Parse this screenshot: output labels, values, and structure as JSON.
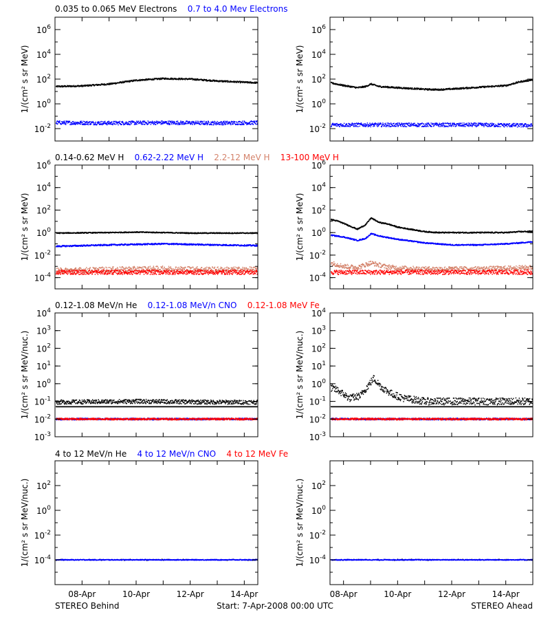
{
  "row_legends": [
    [
      {
        "text": "0.035 to 0.065 MeV Electrons",
        "color": "#000000"
      },
      {
        "text": "0.7 to 4.0 Mev Electrons",
        "color": "#0000ff"
      }
    ],
    [
      {
        "text": "0.14-0.62 MeV H",
        "color": "#000000"
      },
      {
        "text": "0.62-2.22 MeV H",
        "color": "#0000ff"
      },
      {
        "text": "2.2-12 MeV H",
        "color": "#d4826a"
      },
      {
        "text": "13-100 MeV H",
        "color": "#ff0000"
      }
    ],
    [
      {
        "text": "0.12-1.08 MeV/n He",
        "color": "#000000"
      },
      {
        "text": "0.12-1.08 MeV/n CNO",
        "color": "#0000ff"
      },
      {
        "text": "0.12-1.08 MeV Fe",
        "color": "#ff0000"
      }
    ],
    [
      {
        "text": "4 to 12 MeV/n He",
        "color": "#000000"
      },
      {
        "text": "4 to 12 MeV/n CNO",
        "color": "#0000ff"
      },
      {
        "text": "4 to 12 MeV Fe",
        "color": "#ff0000"
      }
    ]
  ],
  "footer": {
    "left": "STEREO Behind",
    "center": "Start:  7-Apr-2008 00:00 UTC",
    "right": "STEREO Ahead"
  },
  "chart_data": [
    {
      "id": "behind-electrons",
      "type": "scatter",
      "ylabel": "1/(cm² s sr MeV)",
      "yscale": "log",
      "ylim": [
        0.001,
        10000000
      ],
      "yticks": [
        {
          "base": "10",
          "exp": "-2",
          "value": 0.01
        },
        {
          "base": "10",
          "exp": "0",
          "value": 1
        },
        {
          "base": "10",
          "exp": "2",
          "value": 100
        },
        {
          "base": "10",
          "exp": "4",
          "value": 10000
        },
        {
          "base": "10",
          "exp": "6",
          "value": 1000000
        }
      ],
      "xlim_days": [
        0,
        7.5
      ],
      "series": [
        {
          "color": "#000000",
          "x": [
            0,
            1,
            2,
            3,
            4,
            5,
            6,
            7,
            7.5
          ],
          "y": [
            25,
            28,
            40,
            80,
            110,
            100,
            70,
            55,
            50
          ],
          "scatter": 0.06
        },
        {
          "color": "#0000ff",
          "x": [
            0,
            2,
            4,
            6,
            7.5
          ],
          "y": [
            0.03,
            0.028,
            0.03,
            0.028,
            0.03
          ],
          "scatter": 0.15
        }
      ]
    },
    {
      "id": "ahead-electrons",
      "type": "scatter",
      "ylabel": "1/(cm² s sr MeV)",
      "yscale": "log",
      "ylim": [
        0.001,
        10000000
      ],
      "yticks": [
        {
          "base": "10",
          "exp": "-2",
          "value": 0.01
        },
        {
          "base": "10",
          "exp": "0",
          "value": 1
        },
        {
          "base": "10",
          "exp": "2",
          "value": 100
        },
        {
          "base": "10",
          "exp": "4",
          "value": 10000
        },
        {
          "base": "10",
          "exp": "6",
          "value": 1000000
        }
      ],
      "xlim_days": [
        0.5,
        8
      ],
      "series": [
        {
          "color": "#000000",
          "x": [
            0.5,
            1,
            1.5,
            1.8,
            2,
            2.3,
            3,
            4,
            4.5,
            5,
            6,
            7,
            7.5,
            8
          ],
          "y": [
            50,
            30,
            20,
            25,
            40,
            25,
            20,
            15,
            14,
            16,
            22,
            30,
            60,
            90
          ],
          "scatter": 0.06
        },
        {
          "color": "#0000ff",
          "x": [
            0.5,
            3,
            6,
            8
          ],
          "y": [
            0.02,
            0.02,
            0.02,
            0.018
          ],
          "scatter": 0.15
        }
      ]
    },
    {
      "id": "behind-protons",
      "type": "scatter",
      "ylabel": "1/(cm² s sr MeV)",
      "yscale": "log",
      "ylim": [
        1e-05,
        1000000
      ],
      "yticks": [
        {
          "base": "10",
          "exp": "-4",
          "value": 0.0001
        },
        {
          "base": "10",
          "exp": "-2",
          "value": 0.01
        },
        {
          "base": "10",
          "exp": "0",
          "value": 1
        },
        {
          "base": "10",
          "exp": "2",
          "value": 100
        },
        {
          "base": "10",
          "exp": "4",
          "value": 10000
        },
        {
          "base": "10",
          "exp": "6",
          "value": 1000000
        }
      ],
      "xlim_days": [
        0,
        7.5
      ],
      "series": [
        {
          "color": "#000000",
          "x": [
            0,
            2,
            3,
            4,
            5,
            6,
            7.5
          ],
          "y": [
            0.9,
            1.0,
            1.1,
            1.0,
            0.9,
            0.9,
            0.9
          ],
          "scatter": 0.04
        },
        {
          "color": "#0000ff",
          "x": [
            0,
            2,
            4,
            6,
            7.5
          ],
          "y": [
            0.06,
            0.08,
            0.1,
            0.08,
            0.07
          ],
          "scatter": 0.06
        },
        {
          "color": "#d4826a",
          "x": [
            0,
            2,
            4,
            6,
            7.5
          ],
          "y": [
            0.0004,
            0.0005,
            0.0006,
            0.0005,
            0.0005
          ],
          "scatter": 0.25
        },
        {
          "color": "#ff0000",
          "x": [
            0,
            3,
            7.5
          ],
          "y": [
            0.0003,
            0.0003,
            0.0003
          ],
          "scatter": 0.2
        }
      ]
    },
    {
      "id": "ahead-protons",
      "type": "scatter",
      "ylabel": "1/(cm² s sr MeV)",
      "yscale": "log",
      "ylim": [
        1e-05,
        1000000
      ],
      "yticks": [
        {
          "base": "10",
          "exp": "-4",
          "value": 0.0001
        },
        {
          "base": "10",
          "exp": "-2",
          "value": 0.01
        },
        {
          "base": "10",
          "exp": "0",
          "value": 1
        },
        {
          "base": "10",
          "exp": "2",
          "value": 100
        },
        {
          "base": "10",
          "exp": "4",
          "value": 10000
        },
        {
          "base": "10",
          "exp": "6",
          "value": 1000000
        }
      ],
      "xlim_days": [
        0.5,
        8
      ],
      "series": [
        {
          "color": "#000000",
          "x": [
            0.5,
            0.8,
            1.2,
            1.5,
            1.8,
            2,
            2.3,
            2.6,
            3,
            4,
            4.5,
            5,
            6,
            7,
            7.5,
            8
          ],
          "y": [
            15,
            10,
            4,
            2,
            5,
            20,
            8,
            6,
            3,
            1.2,
            1.0,
            1.0,
            1.0,
            1.0,
            1.2,
            1.3
          ],
          "scatter": 0.05
        },
        {
          "color": "#0000ff",
          "x": [
            0.5,
            1,
            1.5,
            1.8,
            2,
            2.3,
            3,
            4,
            5,
            6,
            7,
            8
          ],
          "y": [
            0.6,
            0.4,
            0.2,
            0.3,
            0.8,
            0.5,
            0.25,
            0.12,
            0.08,
            0.08,
            0.1,
            0.15
          ],
          "scatter": 0.05
        },
        {
          "color": "#d4826a",
          "x": [
            0.5,
            1,
            1.5,
            2,
            2.5,
            3,
            4,
            6,
            8
          ],
          "y": [
            0.002,
            0.001,
            0.0008,
            0.002,
            0.001,
            0.0007,
            0.0006,
            0.0006,
            0.0008
          ],
          "scatter": 0.2
        },
        {
          "color": "#ff0000",
          "x": [
            0.5,
            3,
            6,
            8
          ],
          "y": [
            0.0003,
            0.0003,
            0.0003,
            0.0003
          ],
          "scatter": 0.2
        }
      ]
    },
    {
      "id": "behind-heavy",
      "type": "scatter",
      "ylabel": "1/(cm² s sr MeV/nuc.)",
      "yscale": "log",
      "ylim": [
        0.001,
        10000
      ],
      "yticks": [
        {
          "base": "10",
          "exp": "-3",
          "value": 0.001
        },
        {
          "base": "10",
          "exp": "-2",
          "value": 0.01
        },
        {
          "base": "10",
          "exp": "-1",
          "value": 0.1
        },
        {
          "base": "10",
          "exp": "0",
          "value": 1
        },
        {
          "base": "10",
          "exp": "1",
          "value": 10
        },
        {
          "base": "10",
          "exp": "2",
          "value": 100
        },
        {
          "base": "10",
          "exp": "3",
          "value": 1000
        },
        {
          "base": "10",
          "exp": "4",
          "value": 10000
        }
      ],
      "xlim_days": [
        0,
        7.5
      ],
      "series": [
        {
          "color": "#000000",
          "x": [
            0,
            7.5
          ],
          "y": [
            0.05,
            0.05
          ],
          "scatter": 0.0
        },
        {
          "color": "#000000",
          "x": [
            0,
            3,
            6,
            7.5
          ],
          "y": [
            0.09,
            0.1,
            0.09,
            0.09
          ],
          "scatter": 0.12
        },
        {
          "color": "#0000ff",
          "x": [
            0,
            7.5
          ],
          "y": [
            0.01,
            0.01
          ],
          "scatter": 0.05
        },
        {
          "color": "#ff0000",
          "x": [
            0,
            7.5
          ],
          "y": [
            0.01,
            0.01
          ],
          "scatter": 0.05
        }
      ]
    },
    {
      "id": "ahead-heavy",
      "type": "scatter",
      "ylabel": "1/(cm² s sr MeV/nuc.)",
      "yscale": "log",
      "ylim": [
        0.001,
        10000
      ],
      "yticks": [
        {
          "base": "10",
          "exp": "-3",
          "value": 0.001
        },
        {
          "base": "10",
          "exp": "-2",
          "value": 0.01
        },
        {
          "base": "10",
          "exp": "-1",
          "value": 0.1
        },
        {
          "base": "10",
          "exp": "0",
          "value": 1
        },
        {
          "base": "10",
          "exp": "1",
          "value": 10
        },
        {
          "base": "10",
          "exp": "2",
          "value": 100
        },
        {
          "base": "10",
          "exp": "3",
          "value": 1000
        },
        {
          "base": "10",
          "exp": "4",
          "value": 10000
        }
      ],
      "xlim_days": [
        0.5,
        8
      ],
      "series": [
        {
          "color": "#000000",
          "x": [
            0.5,
            0.8,
            1.2,
            1.6,
            1.9,
            2.1,
            2.4,
            2.8,
            3.2,
            4,
            6,
            8
          ],
          "y": [
            0.6,
            0.4,
            0.15,
            0.2,
            0.8,
            2,
            0.6,
            0.25,
            0.15,
            0.1,
            0.1,
            0.1
          ],
          "scatter": 0.2
        },
        {
          "color": "#000000",
          "x": [
            0.5,
            8
          ],
          "y": [
            0.05,
            0.05
          ],
          "scatter": 0.0
        },
        {
          "color": "#0000ff",
          "x": [
            0.5,
            8
          ],
          "y": [
            0.01,
            0.01
          ],
          "scatter": 0.05
        },
        {
          "color": "#ff0000",
          "x": [
            0.5,
            8
          ],
          "y": [
            0.01,
            0.01
          ],
          "scatter": 0.05
        }
      ]
    },
    {
      "id": "behind-high-heavy",
      "type": "scatter",
      "ylabel": "1/(cm² s sr MeV/nuc.)",
      "yscale": "log",
      "ylim": [
        1e-06,
        10000
      ],
      "yticks": [
        {
          "base": "10",
          "exp": "-4",
          "value": 0.0001
        },
        {
          "base": "10",
          "exp": "-2",
          "value": 0.01
        },
        {
          "base": "10",
          "exp": "0",
          "value": 1
        },
        {
          "base": "10",
          "exp": "2",
          "value": 100
        }
      ],
      "xlim_days": [
        0,
        7.5
      ],
      "series": [
        {
          "color": "#000000",
          "x": [
            0,
            7.5
          ],
          "y": [
            0.0001,
            0.0001
          ],
          "scatter": 0.05,
          "sparse": true
        },
        {
          "color": "#0000ff",
          "x": [
            0,
            7.5
          ],
          "y": [
            0.0001,
            0.0001
          ],
          "scatter": 0.03
        }
      ]
    },
    {
      "id": "ahead-high-heavy",
      "type": "scatter",
      "ylabel": "1/(cm² s sr MeV/nuc.)",
      "yscale": "log",
      "ylim": [
        1e-06,
        10000
      ],
      "yticks": [
        {
          "base": "10",
          "exp": "-4",
          "value": 0.0001
        },
        {
          "base": "10",
          "exp": "-2",
          "value": 0.01
        },
        {
          "base": "10",
          "exp": "0",
          "value": 1
        },
        {
          "base": "10",
          "exp": "2",
          "value": 100
        }
      ],
      "xlim_days": [
        0.5,
        8
      ],
      "series": [
        {
          "color": "#000000",
          "x": [
            0.5,
            8
          ],
          "y": [
            0.0001,
            0.0001
          ],
          "scatter": 0.05,
          "sparse": true
        },
        {
          "color": "#0000ff",
          "x": [
            0.5,
            8
          ],
          "y": [
            0.0001,
            0.0001
          ],
          "scatter": 0.03
        }
      ]
    }
  ],
  "x_axis": {
    "behind_ticks": [
      {
        "label": "08-Apr",
        "day": 1
      },
      {
        "label": "10-Apr",
        "day": 3
      },
      {
        "label": "12-Apr",
        "day": 5
      },
      {
        "label": "14-Apr",
        "day": 7
      }
    ],
    "ahead_ticks": [
      {
        "label": "08-Apr",
        "day": 1
      },
      {
        "label": "10-Apr",
        "day": 3
      },
      {
        "label": "12-Apr",
        "day": 5
      },
      {
        "label": "14-Apr",
        "day": 7
      }
    ]
  }
}
